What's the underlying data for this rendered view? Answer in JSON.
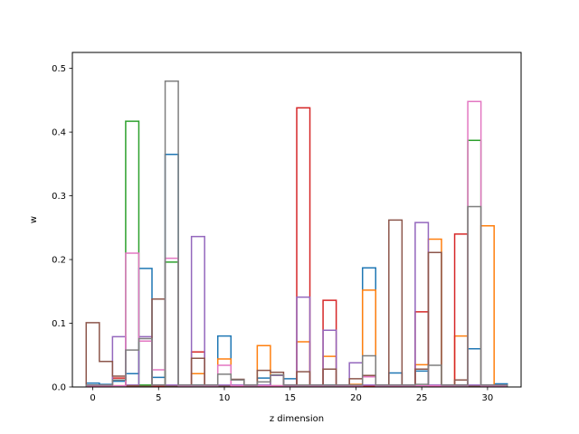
{
  "chart_data": {
    "type": "bar",
    "style": "step-outline",
    "title": "",
    "xlabel": "z dimension",
    "ylabel": "w",
    "xlim": [
      -1.55,
      32.55
    ],
    "ylim": [
      0,
      0.525
    ],
    "xticks": [
      0,
      5,
      10,
      15,
      20,
      25,
      30
    ],
    "yticks": [
      0.0,
      0.1,
      0.2,
      0.3,
      0.4,
      0.5
    ],
    "grid": false,
    "colors": [
      "#1f77b4",
      "#ff7f0e",
      "#2ca02c",
      "#d62728",
      "#9467bd",
      "#8c564b",
      "#e377c2",
      "#7f7f7f"
    ],
    "series": [
      {
        "values": [
          0.006,
          0.004,
          0.009,
          0.021,
          0.186,
          0.015,
          0.365,
          0.002,
          0.003,
          0.002,
          0.08,
          0.002,
          0.001,
          0.014,
          0.002,
          0.013,
          0.002,
          0.001,
          0.003,
          0.002,
          0.003,
          0.187,
          0.002,
          0.022,
          0.002,
          0.025,
          0.002,
          0.002,
          0.003,
          0.06,
          0.002,
          0.005
        ]
      },
      {
        "values": [
          0.002,
          0.002,
          0.002,
          0.002,
          0.002,
          0.002,
          0.002,
          0.002,
          0.021,
          0.002,
          0.044,
          0.002,
          0.002,
          0.065,
          0.002,
          0.002,
          0.071,
          0.002,
          0.048,
          0.002,
          0.004,
          0.152,
          0.002,
          0.002,
          0.002,
          0.035,
          0.232,
          0.002,
          0.08,
          0.002,
          0.253,
          0.002
        ]
      },
      {
        "values": [
          0.001,
          0.001,
          0.001,
          0.417,
          0.003,
          0.003,
          0.196,
          0.001,
          0.001,
          0.001,
          0.001,
          0.001,
          0.001,
          0.001,
          0.001,
          0.001,
          0.001,
          0.001,
          0.001,
          0.001,
          0.001,
          0.001,
          0.001,
          0.001,
          0.001,
          0.001,
          0.001,
          0.001,
          0.001,
          0.387,
          0.001,
          0.001
        ]
      },
      {
        "values": [
          0.001,
          0.001,
          0.014,
          0.001,
          0.001,
          0.001,
          0.001,
          0.001,
          0.055,
          0.001,
          0.001,
          0.001,
          0.001,
          0.001,
          0.001,
          0.001,
          0.438,
          0.001,
          0.136,
          0.001,
          0.001,
          0.001,
          0.001,
          0.001,
          0.001,
          0.118,
          0.001,
          0.001,
          0.24,
          0.001,
          0.001,
          0.001
        ]
      },
      {
        "values": [
          0.003,
          0.003,
          0.079,
          0.003,
          0.079,
          0.003,
          0.003,
          0.003,
          0.236,
          0.003,
          0.003,
          0.003,
          0.003,
          0.003,
          0.018,
          0.003,
          0.141,
          0.003,
          0.089,
          0.003,
          0.038,
          0.003,
          0.003,
          0.003,
          0.003,
          0.258,
          0.003,
          0.003,
          0.003,
          0.003,
          0.003,
          0.003
        ]
      },
      {
        "values": [
          0.101,
          0.04,
          0.017,
          0.002,
          0.001,
          0.138,
          0.001,
          0.001,
          0.045,
          0.001,
          0.001,
          0.012,
          0.001,
          0.026,
          0.023,
          0.001,
          0.024,
          0.001,
          0.028,
          0.001,
          0.013,
          0.018,
          0.001,
          0.262,
          0.001,
          0.028,
          0.211,
          0.001,
          0.011,
          0.001,
          0.001,
          0.001
        ]
      },
      {
        "values": [
          0.002,
          0.002,
          0.002,
          0.21,
          0.072,
          0.027,
          0.202,
          0.002,
          0.002,
          0.002,
          0.034,
          0.002,
          0.002,
          0.002,
          0.002,
          0.002,
          0.002,
          0.002,
          0.002,
          0.002,
          0.002,
          0.016,
          0.002,
          0.002,
          0.002,
          0.002,
          0.002,
          0.002,
          0.002,
          0.448,
          0.002,
          0.002
        ]
      },
      {
        "values": [
          0.003,
          0.003,
          0.011,
          0.058,
          0.076,
          0.003,
          0.48,
          0.003,
          0.003,
          0.003,
          0.02,
          0.011,
          0.003,
          0.008,
          0.019,
          0.003,
          0.003,
          0.003,
          0.003,
          0.003,
          0.003,
          0.049,
          0.003,
          0.003,
          0.003,
          0.004,
          0.034,
          0.003,
          0.003,
          0.283,
          0.003,
          0.003
        ]
      }
    ]
  }
}
